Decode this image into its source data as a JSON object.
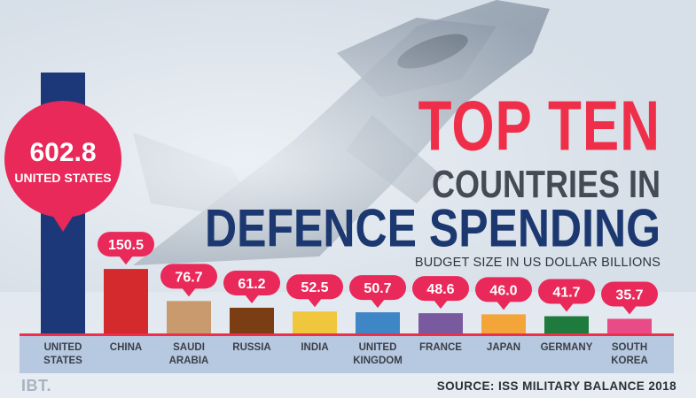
{
  "header": {
    "title_line1": "TOP TEN",
    "title_line2": "COUNTRIES IN",
    "title_line3": "DEFENCE SPENDING",
    "subtitle": "BUDGET SIZE IN US DOLLAR BILLIONS"
  },
  "footer": {
    "logo": "IBT.",
    "source": "SOURCE: ISS MILITARY BALANCE 2018"
  },
  "colors": {
    "accent": "#ef2f4a",
    "bubble": "#e8295a",
    "title_blue": "#1c3870"
  },
  "chart_data": {
    "type": "bar",
    "title": "TOP TEN COUNTRIES IN DEFENCE SPENDING",
    "subtitle": "BUDGET SIZE IN US DOLLAR BILLIONS",
    "categories": [
      "UNITED\nSTATES",
      "CHINA",
      "SAUDI\nARABIA",
      "RUSSIA",
      "INDIA",
      "UNITED\nKINGDOM",
      "FRANCE",
      "JAPAN",
      "GERMANY",
      "SOUTH\nKOREA"
    ],
    "values": [
      602.8,
      150.5,
      76.7,
      61.2,
      52.5,
      50.7,
      48.6,
      46.0,
      41.7,
      35.7
    ],
    "value_labels": [
      "602.8",
      "150.5",
      "76.7",
      "61.2",
      "52.5",
      "50.7",
      "48.6",
      "46.0",
      "41.7",
      "35.7"
    ],
    "callout_label": "UNITED STATES",
    "bar_colors": [
      "#1c3878",
      "#d42a2e",
      "#c99a6e",
      "#7a3d14",
      "#f0c63c",
      "#3f86c6",
      "#7a5a9e",
      "#f4a53a",
      "#1f7a3e",
      "#e84b86"
    ],
    "ylim": [
      0,
      602.8
    ],
    "grid": false,
    "legend": "none"
  }
}
